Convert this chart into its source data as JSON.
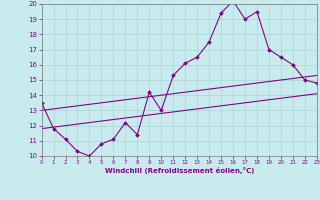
{
  "xlabel": "Windchill (Refroidissement éolien,°C)",
  "xlim": [
    0,
    23
  ],
  "ylim": [
    10,
    20
  ],
  "xticks": [
    0,
    1,
    2,
    3,
    4,
    5,
    6,
    7,
    8,
    9,
    10,
    11,
    12,
    13,
    14,
    15,
    16,
    17,
    18,
    19,
    20,
    21,
    22,
    23
  ],
  "yticks": [
    10,
    11,
    12,
    13,
    14,
    15,
    16,
    17,
    18,
    19,
    20
  ],
  "background_color": "#c8ecee",
  "grid_color": "#aad4d8",
  "line_color": "#880088",
  "line1_x": [
    0,
    1,
    2,
    3,
    4,
    5,
    6,
    7,
    8,
    9,
    10,
    11,
    12,
    13,
    14,
    15,
    16,
    17,
    18,
    19,
    20,
    21,
    22,
    23
  ],
  "line1_y": [
    13.5,
    11.8,
    11.1,
    10.3,
    10.0,
    10.8,
    11.1,
    12.2,
    11.4,
    14.2,
    13.0,
    15.3,
    16.1,
    16.5,
    17.5,
    19.4,
    20.2,
    19.0,
    19.5,
    17.0,
    16.5,
    16.0,
    15.0,
    14.8
  ],
  "line2_x": [
    0,
    1,
    2,
    3,
    4,
    5,
    6,
    7,
    8,
    9,
    10,
    11,
    12,
    13,
    14,
    15,
    16,
    17,
    18,
    19,
    20,
    21,
    22,
    23
  ],
  "line2_y": [
    11.8,
    11.9,
    12.0,
    12.1,
    12.2,
    12.3,
    12.4,
    12.5,
    12.6,
    12.7,
    12.8,
    12.9,
    13.0,
    13.1,
    13.2,
    13.3,
    13.4,
    13.5,
    13.6,
    13.7,
    13.8,
    13.9,
    14.0,
    14.1
  ],
  "line3_x": [
    0,
    1,
    2,
    3,
    4,
    5,
    6,
    7,
    8,
    9,
    10,
    11,
    12,
    13,
    14,
    15,
    16,
    17,
    18,
    19,
    20,
    21,
    22,
    23
  ],
  "line3_y": [
    13.0,
    13.1,
    13.2,
    13.3,
    13.4,
    13.5,
    13.6,
    13.7,
    13.8,
    13.9,
    14.0,
    14.1,
    14.2,
    14.3,
    14.4,
    14.5,
    14.6,
    14.7,
    14.8,
    14.9,
    15.0,
    15.1,
    15.2,
    15.3
  ]
}
